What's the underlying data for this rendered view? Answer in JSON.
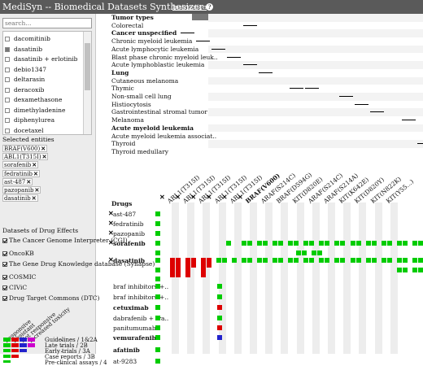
{
  "app": {
    "title": "MediSyn -- Biomedical Datasets Synthesizer",
    "instruction_label": "Instruction",
    "instruction_icon": "info-icon"
  },
  "search": {
    "placeholder": "search..."
  },
  "drug_list": [
    {
      "label": "dacomitinib",
      "checked": false
    },
    {
      "label": "dasatinib",
      "checked": true
    },
    {
      "label": "dasatinib + erlotinib",
      "checked": false
    },
    {
      "label": "debio1347",
      "checked": false
    },
    {
      "label": "deltarasin",
      "checked": false
    },
    {
      "label": "deracoxib",
      "checked": false
    },
    {
      "label": "dexamethasone",
      "checked": false
    },
    {
      "label": "dimethyladenine",
      "checked": false
    },
    {
      "label": "diphenylurea",
      "checked": false
    },
    {
      "label": "docetaxel",
      "checked": false
    }
  ],
  "selected_entities": {
    "label": "Selected entities",
    "items": [
      "BRAF(V600)",
      "ABL1(T315I)",
      "sorafenib",
      "fedratinib",
      "ast-487",
      "pazopanib",
      "dasatinib"
    ]
  },
  "effects": {
    "label": "Datasets of Drug Effects",
    "sources": [
      "The Cancer Genome Interpreter (CGI)",
      "OncoKB",
      "The Gene Drug Knowledge database (Synapse)",
      "COSMIC",
      "CIViC",
      "Drug Target Commons (DTC)"
    ]
  },
  "legend": {
    "responses": [
      {
        "label": "Responsive",
        "color": "#00cc00"
      },
      {
        "label": "Resistant",
        "color": "#dd0000"
      },
      {
        "label": "Not responsive",
        "color": "#2222cc"
      },
      {
        "label": "Increased toxicity",
        "color": "#cc00cc"
      }
    ],
    "levels": [
      "Guidelines / 1&2A",
      "Late trials / 2B",
      "Early trials / 3A",
      "Case reports / 3B",
      "Pre-clinical assays / 4"
    ]
  },
  "tumor_types": {
    "rows": [
      {
        "label": "Tumor types",
        "bold": true
      },
      {
        "label": "Colorectal",
        "bold": false
      },
      {
        "label": "Cancer unspecified",
        "bold": true
      },
      {
        "label": "Chronic myeloid leukemia",
        "bold": false
      },
      {
        "label": "Acute lymphocytic leukemia",
        "bold": false
      },
      {
        "label": "Blast phase chronic myeloid leuk..",
        "bold": false
      },
      {
        "label": "Acute lymphoblastic leukemia",
        "bold": false
      },
      {
        "label": "Lung",
        "bold": true
      },
      {
        "label": "Cutaneous melanoma",
        "bold": false
      },
      {
        "label": "Thymic",
        "bold": false
      },
      {
        "label": "Non-small cell lung",
        "bold": false
      },
      {
        "label": "Histiocytosis",
        "bold": false
      },
      {
        "label": "Gastrointestinal stromal tumor",
        "bold": false
      },
      {
        "label": "Melanoma",
        "bold": false
      },
      {
        "label": "Acute myeloid leukemia",
        "bold": true
      },
      {
        "label": "Acute myeloid leukemia associat..",
        "bold": false
      },
      {
        "label": "Thyroid",
        "bold": false
      },
      {
        "label": "Thyroid medullary",
        "bold": false
      }
    ]
  },
  "columns": [
    {
      "label": "ABL1(T315I)",
      "x": true,
      "bold": false
    },
    {
      "label": "ABL1(T315I)",
      "x": true,
      "bold": false
    },
    {
      "label": "ABL1(T315I)",
      "x": true,
      "bold": false
    },
    {
      "label": "ABL1(T315I)",
      "x": true,
      "bold": false
    },
    {
      "label": "ABL1(T315I)",
      "x": true,
      "bold": false
    },
    {
      "label": "BRAF(V600)",
      "x": true,
      "bold": true
    },
    {
      "label": "ARAF(S214C)",
      "x": false,
      "bold": false
    },
    {
      "label": "BRAF(D594G)",
      "x": false,
      "bold": false
    },
    {
      "label": "KIT(D820E)",
      "x": false,
      "bold": false
    },
    {
      "label": "ARAF(S214C)",
      "x": false,
      "bold": false
    },
    {
      "label": "ARAF(S214A)",
      "x": false,
      "bold": false
    },
    {
      "label": "KIT(K642E)",
      "x": false,
      "bold": false
    },
    {
      "label": "KIT(D820Y)",
      "x": false,
      "bold": false
    },
    {
      "label": "KIT(N822K)",
      "x": false,
      "bold": false
    },
    {
      "label": "KIT(Y55...)",
      "x": false,
      "bold": false
    }
  ],
  "matrix": {
    "drugs_header": "Drugs",
    "rows": [
      {
        "label": "ast-487",
        "bold": false,
        "x": true
      },
      {
        "label": "fedratinib",
        "bold": false,
        "x": true
      },
      {
        "label": "pazopanib",
        "bold": false,
        "x": true
      },
      {
        "label": "sorafenib",
        "bold": true,
        "x": true
      },
      {
        "label": "",
        "bold": false,
        "x": false
      },
      {
        "label": "dasatinib",
        "bold": true,
        "x": true
      },
      {
        "label": "",
        "bold": false,
        "x": false
      },
      {
        "label": "",
        "bold": false,
        "x": false
      },
      {
        "label": "braf inhibitors +..",
        "bold": false,
        "x": false
      },
      {
        "label": "braf inhibitors +..",
        "bold": false,
        "x": false
      },
      {
        "label": "cetuximab",
        "bold": true,
        "x": false
      },
      {
        "label": "dabrafenib + tra..",
        "bold": false,
        "x": false
      },
      {
        "label": "panitumumab",
        "bold": false,
        "x": false
      },
      {
        "label": "vemurafenib",
        "bold": true,
        "x": false
      },
      {
        "label": "afatinib",
        "bold": true,
        "x": false
      },
      {
        "label": "at-9283",
        "bold": false,
        "x": false
      }
    ]
  }
}
